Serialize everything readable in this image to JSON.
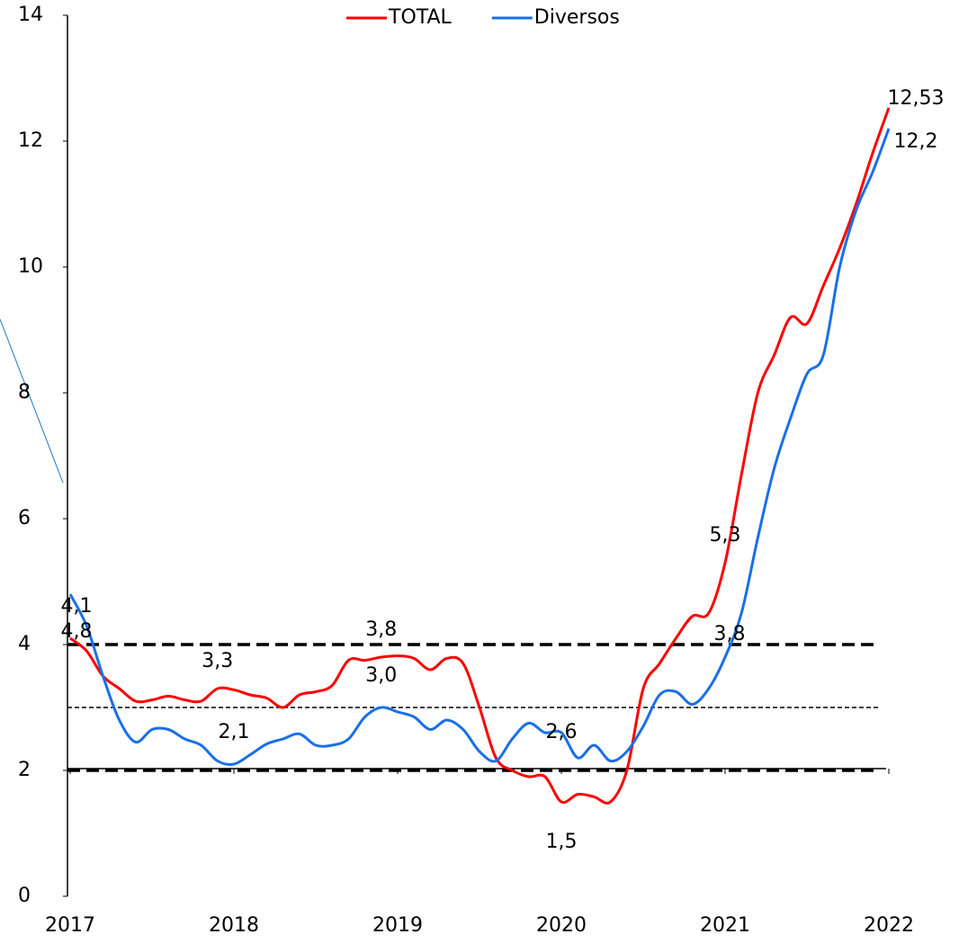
{
  "chart_data": {
    "type": "line",
    "x": [
      2017,
      2017.1,
      2017.2,
      2017.3,
      2017.4,
      2017.5,
      2017.6,
      2017.7,
      2017.8,
      2017.9,
      2018,
      2018.1,
      2018.2,
      2018.3,
      2018.4,
      2018.5,
      2018.6,
      2018.7,
      2018.8,
      2018.9,
      2019,
      2019.1,
      2019.2,
      2019.3,
      2019.4,
      2019.5,
      2019.6,
      2019.7,
      2019.8,
      2019.9,
      2020,
      2020.1,
      2020.2,
      2020.3,
      2020.4,
      2020.5,
      2020.6,
      2020.7,
      2020.8,
      2020.9,
      2021,
      2021.1,
      2021.2,
      2021.3,
      2021.4,
      2021.5,
      2021.6,
      2021.7,
      2021.8,
      2021.9,
      2022
    ],
    "series": [
      {
        "name": "TOTAL",
        "color": "#ff0000",
        "label_color": "#ff0000",
        "values": [
          4.1,
          3.9,
          3.5,
          3.3,
          3.1,
          3.12,
          3.18,
          3.12,
          3.1,
          3.3,
          3.28,
          3.2,
          3.15,
          3.0,
          3.2,
          3.25,
          3.35,
          3.75,
          3.75,
          3.8,
          3.82,
          3.78,
          3.6,
          3.78,
          3.7,
          3.0,
          2.2,
          2.0,
          1.9,
          1.9,
          1.5,
          1.62,
          1.58,
          1.5,
          2.0,
          3.3,
          3.7,
          4.1,
          4.45,
          4.5,
          5.3,
          6.7,
          8.0,
          8.6,
          9.2,
          9.1,
          9.7,
          10.3,
          11.0,
          11.8,
          12.53
        ],
        "value_labels": [
          "4,1",
          null,
          null,
          null,
          null,
          null,
          null,
          null,
          null,
          "3,3",
          null,
          null,
          null,
          null,
          null,
          null,
          null,
          null,
          null,
          "3,8",
          null,
          null,
          null,
          null,
          null,
          null,
          null,
          null,
          null,
          null,
          "1,5",
          null,
          null,
          null,
          null,
          null,
          null,
          null,
          null,
          null,
          "5,3",
          null,
          null,
          null,
          null,
          null,
          null,
          null,
          null,
          null,
          "12,53"
        ]
      },
      {
        "name": "Diversos",
        "color": "#1a6fe8",
        "label_color": "#1f77c0",
        "values": [
          4.8,
          4.3,
          3.5,
          2.8,
          2.45,
          2.65,
          2.65,
          2.5,
          2.4,
          2.15,
          2.1,
          2.25,
          2.42,
          2.5,
          2.58,
          2.4,
          2.4,
          2.5,
          2.85,
          3.0,
          2.93,
          2.85,
          2.65,
          2.8,
          2.65,
          2.3,
          2.15,
          2.5,
          2.75,
          2.6,
          2.6,
          2.2,
          2.4,
          2.15,
          2.3,
          2.7,
          3.2,
          3.25,
          3.05,
          3.3,
          3.8,
          4.5,
          5.7,
          6.8,
          7.6,
          8.3,
          8.6,
          10.0,
          10.9,
          11.5,
          12.2
        ],
        "value_labels": [
          "4,8",
          null,
          null,
          null,
          null,
          null,
          null,
          null,
          null,
          null,
          "2,1",
          null,
          null,
          null,
          null,
          null,
          null,
          null,
          null,
          "3,0",
          null,
          null,
          null,
          null,
          null,
          null,
          null,
          null,
          null,
          null,
          "2,6",
          null,
          null,
          null,
          null,
          null,
          null,
          null,
          null,
          null,
          "3,8",
          null,
          null,
          null,
          null,
          null,
          null,
          null,
          null,
          null,
          "12,2"
        ]
      }
    ],
    "reference_lines": [
      {
        "value": 4,
        "style": "thick"
      },
      {
        "value": 3,
        "style": "thin"
      },
      {
        "value": 2,
        "style": "thick"
      }
    ],
    "xlim": [
      2017,
      2022
    ],
    "xticks": [
      2017,
      2018,
      2019,
      2020,
      2021,
      2022
    ],
    "ylim": [
      0,
      14
    ],
    "yticks": [
      0,
      2,
      4,
      6,
      8,
      10,
      12,
      14
    ],
    "legend": "top",
    "grid": false
  }
}
